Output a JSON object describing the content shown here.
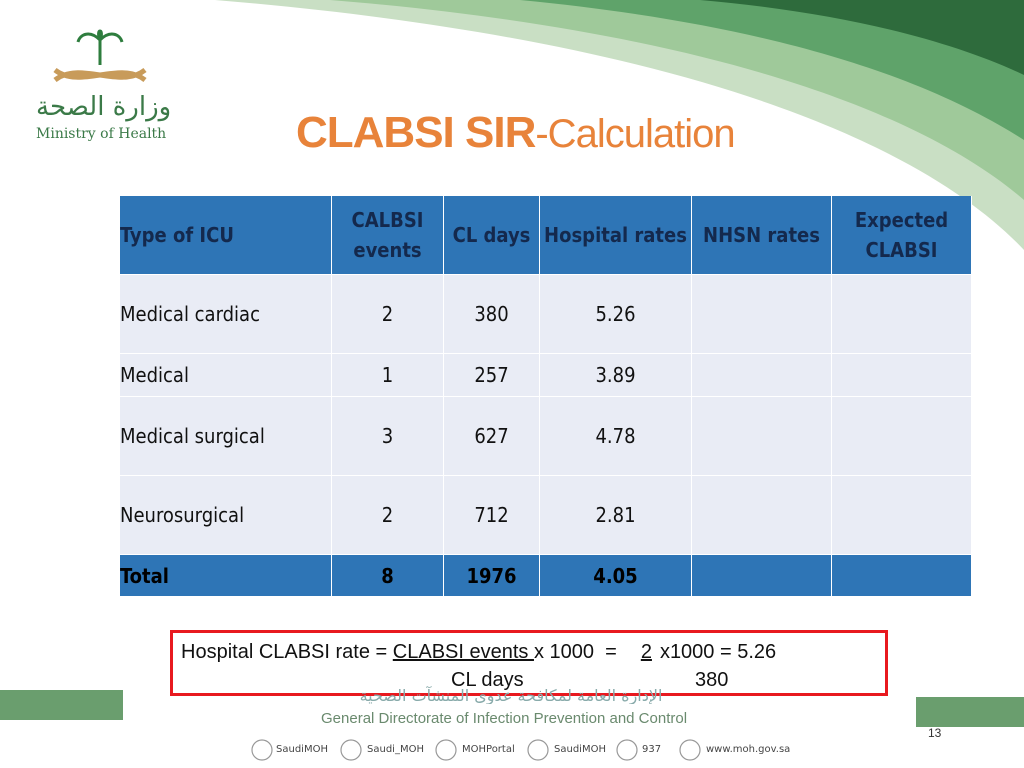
{
  "header": {
    "logo_arabic": "وزارة الصحة",
    "logo_english": "Ministry of Health",
    "title_bold": "CLABSI SIR",
    "title_rest": "-Calculation"
  },
  "table": {
    "columns": [
      "Type of ICU",
      "CALBSI events",
      "CL days",
      "Hospital rates",
      "NHSN rates",
      "Expected CLABSI"
    ],
    "rows": [
      [
        "Medical cardiac",
        "2",
        "380",
        "5.26"
      ],
      [
        "Medical",
        "1",
        "257",
        "3.89"
      ],
      [
        "Medical surgical",
        "3",
        "627",
        "4.78"
      ],
      [
        "Neurosurgical",
        "2",
        "712",
        "2.81"
      ]
    ],
    "total": [
      "Total",
      "8",
      "1976",
      "4.05"
    ]
  },
  "formula": {
    "lead": "Hospital CLABSI rate = ",
    "numerator": "CLABSI events ",
    "times": "x 1000  =",
    "value_numerator": "2",
    "result": "x1000 = 5.26",
    "denominator": "CL days",
    "value_denominator": "380"
  },
  "footer": {
    "arabic": "الإدارة العامة لمكافحة عدوى المنشآت الصحية",
    "english": "General Directorate of Infection Prevention and Control",
    "social": [
      "SaudiMOH",
      "Saudi_MOH",
      "MOHPortal",
      "SaudiMOH",
      "937",
      "www.moh.gov.sa"
    ],
    "page_number": "13"
  }
}
